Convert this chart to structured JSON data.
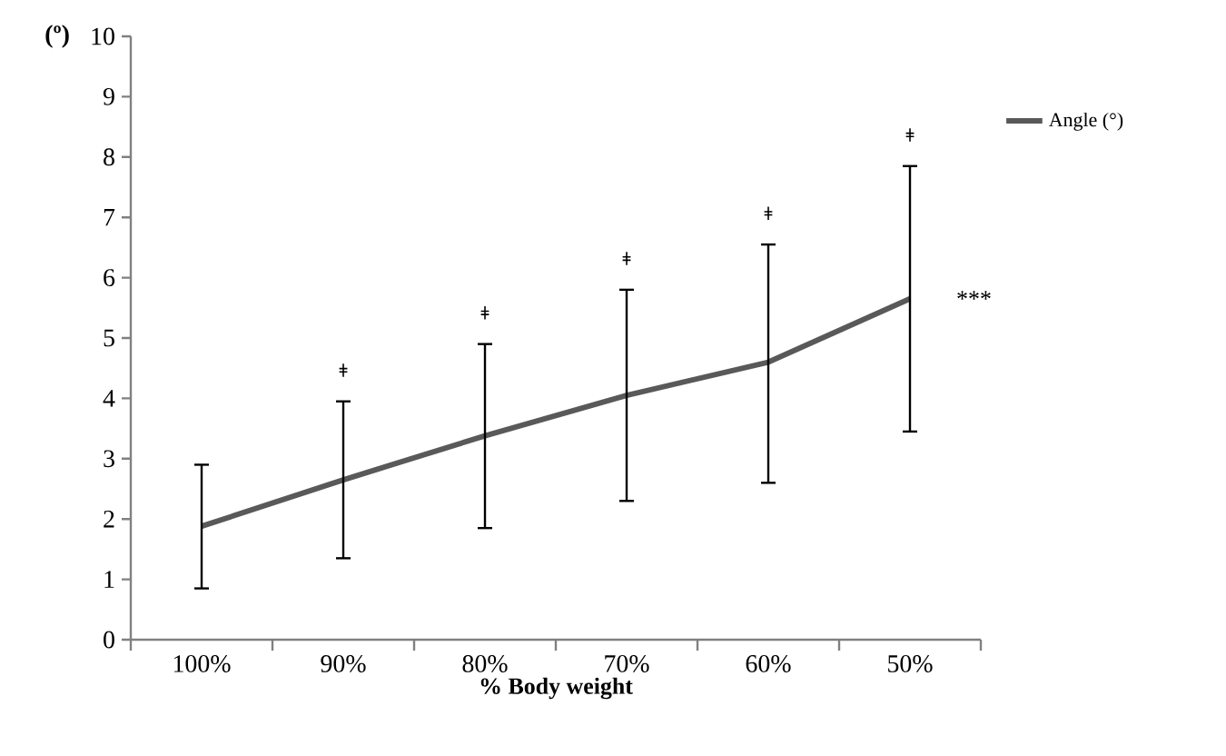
{
  "chart_data": {
    "type": "line",
    "xlabel": "% Body weight",
    "ylabel": "(º)",
    "categories": [
      "100%",
      "90%",
      "80%",
      "70%",
      "60%",
      "50%"
    ],
    "series": [
      {
        "name": "Angle (°)",
        "color": "#595959",
        "values": [
          1.88,
          2.65,
          3.38,
          4.05,
          4.6,
          5.65
        ],
        "errors": [
          [
            0.85,
            2.9
          ],
          [
            1.35,
            3.95
          ],
          [
            1.85,
            4.9
          ],
          [
            2.3,
            5.8
          ],
          [
            2.6,
            6.55
          ],
          [
            3.45,
            7.85
          ]
        ]
      }
    ],
    "ylim": [
      0,
      10
    ],
    "yticks": [
      0,
      1,
      2,
      3,
      4,
      5,
      6,
      7,
      8,
      9,
      10
    ],
    "grid": false,
    "legend": "top right",
    "marker": "none",
    "line_style": "solid",
    "annotations": [
      "ǂ",
      "ǂ",
      "ǂ",
      "ǂ",
      "ǂ",
      "***"
    ]
  }
}
